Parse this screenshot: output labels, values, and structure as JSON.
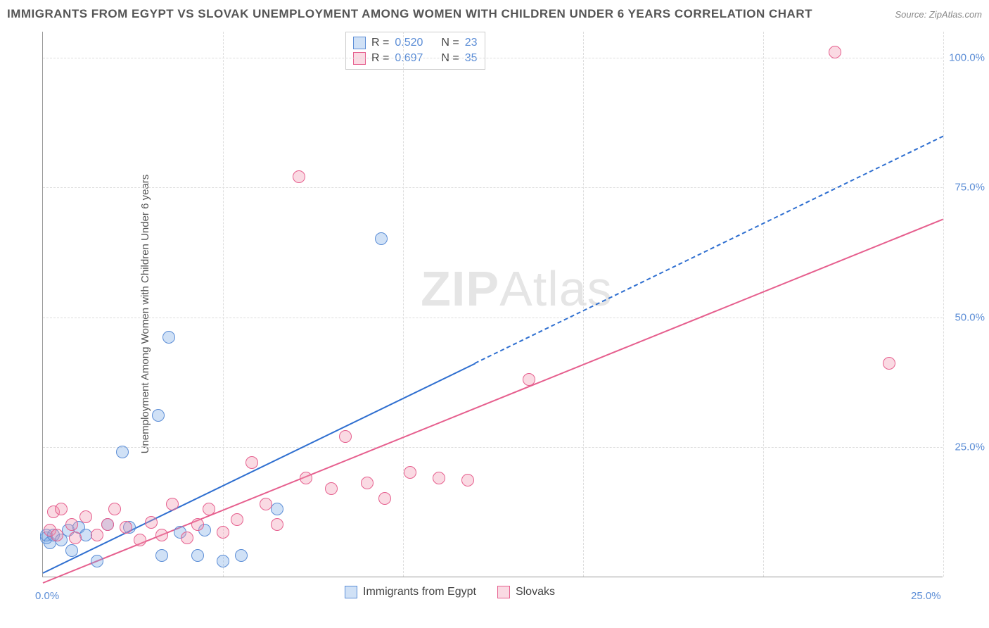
{
  "title": "IMMIGRANTS FROM EGYPT VS SLOVAK UNEMPLOYMENT AMONG WOMEN WITH CHILDREN UNDER 6 YEARS CORRELATION CHART",
  "source_label": "Source: ZipAtlas.com",
  "ylabel": "Unemployment Among Women with Children Under 6 years",
  "watermark_a": "ZIP",
  "watermark_b": "Atlas",
  "chart": {
    "type": "scatter",
    "x_range": [
      0,
      25
    ],
    "y_range": [
      0,
      105
    ],
    "x_ticks": [
      0,
      5,
      10,
      15,
      20,
      25
    ],
    "y_ticks": [
      25,
      50,
      75,
      100
    ],
    "x_tick_labels": [
      "0.0%",
      "",
      "",
      "",
      "",
      "25.0%"
    ],
    "y_tick_labels": [
      "25.0%",
      "50.0%",
      "75.0%",
      "100.0%"
    ],
    "grid_color": "#dddddd",
    "axis_color": "#999999",
    "background_color": "#ffffff",
    "series": [
      {
        "name": "Immigrants from Egypt",
        "color_fill": "rgba(120,170,230,0.35)",
        "color_stroke": "#5b8dd6",
        "trend_color": "#2f6fd0",
        "marker_radius": 9,
        "R": "0.520",
        "N": "23",
        "trend": {
          "x1": 0,
          "y1": 1,
          "x2": 25,
          "y2": 85,
          "solid_until_x": 12
        },
        "points": [
          [
            0.1,
            7.5
          ],
          [
            0.1,
            8
          ],
          [
            0.2,
            6.5
          ],
          [
            0.3,
            8
          ],
          [
            0.5,
            7
          ],
          [
            0.7,
            9
          ],
          [
            0.8,
            5
          ],
          [
            1.0,
            9.5
          ],
          [
            1.2,
            8
          ],
          [
            1.5,
            3
          ],
          [
            1.8,
            10
          ],
          [
            2.2,
            24
          ],
          [
            2.4,
            9.5
          ],
          [
            3.2,
            31
          ],
          [
            3.3,
            4
          ],
          [
            3.5,
            46
          ],
          [
            3.8,
            8.5
          ],
          [
            4.3,
            4
          ],
          [
            4.5,
            9
          ],
          [
            5.0,
            3
          ],
          [
            5.5,
            4
          ],
          [
            6.5,
            13
          ],
          [
            9.4,
            65
          ]
        ]
      },
      {
        "name": "Slovaks",
        "color_fill": "rgba(240,150,175,0.35)",
        "color_stroke": "#e65f8e",
        "trend_color": "#e65f8e",
        "marker_radius": 9,
        "R": "0.697",
        "N": "35",
        "trend": {
          "x1": 0,
          "y1": -1,
          "x2": 25,
          "y2": 69,
          "solid_until_x": 25
        },
        "points": [
          [
            0.2,
            9
          ],
          [
            0.3,
            12.5
          ],
          [
            0.4,
            8
          ],
          [
            0.5,
            13
          ],
          [
            0.8,
            10
          ],
          [
            0.9,
            7.5
          ],
          [
            1.2,
            11.5
          ],
          [
            1.5,
            8
          ],
          [
            1.8,
            10
          ],
          [
            2.0,
            13
          ],
          [
            2.3,
            9.5
          ],
          [
            2.7,
            7
          ],
          [
            3.0,
            10.5
          ],
          [
            3.3,
            8
          ],
          [
            3.6,
            14
          ],
          [
            4.0,
            7.5
          ],
          [
            4.3,
            10
          ],
          [
            4.6,
            13
          ],
          [
            5.0,
            8.5
          ],
          [
            5.4,
            11
          ],
          [
            5.8,
            22
          ],
          [
            6.2,
            14
          ],
          [
            6.5,
            10
          ],
          [
            7.1,
            77
          ],
          [
            7.3,
            19
          ],
          [
            8.0,
            17
          ],
          [
            8.4,
            27
          ],
          [
            9.0,
            18
          ],
          [
            9.5,
            15
          ],
          [
            10.2,
            20
          ],
          [
            11.0,
            19
          ],
          [
            11.8,
            18.5
          ],
          [
            13.5,
            38
          ],
          [
            22.0,
            101
          ],
          [
            23.5,
            41
          ]
        ]
      }
    ]
  },
  "legend_top": {
    "rows": [
      {
        "swatch_fill": "rgba(120,170,230,0.35)",
        "swatch_stroke": "#5b8dd6",
        "R_label": "R =",
        "R_val": "0.520",
        "N_label": "N =",
        "N_val": "23"
      },
      {
        "swatch_fill": "rgba(240,150,175,0.35)",
        "swatch_stroke": "#e65f8e",
        "R_label": "R =",
        "R_val": "0.697",
        "N_label": "N =",
        "N_val": "35"
      }
    ]
  },
  "legend_bottom": {
    "items": [
      {
        "swatch_fill": "rgba(120,170,230,0.35)",
        "swatch_stroke": "#5b8dd6",
        "label": "Immigrants from Egypt"
      },
      {
        "swatch_fill": "rgba(240,150,175,0.35)",
        "swatch_stroke": "#e65f8e",
        "label": "Slovaks"
      }
    ]
  }
}
